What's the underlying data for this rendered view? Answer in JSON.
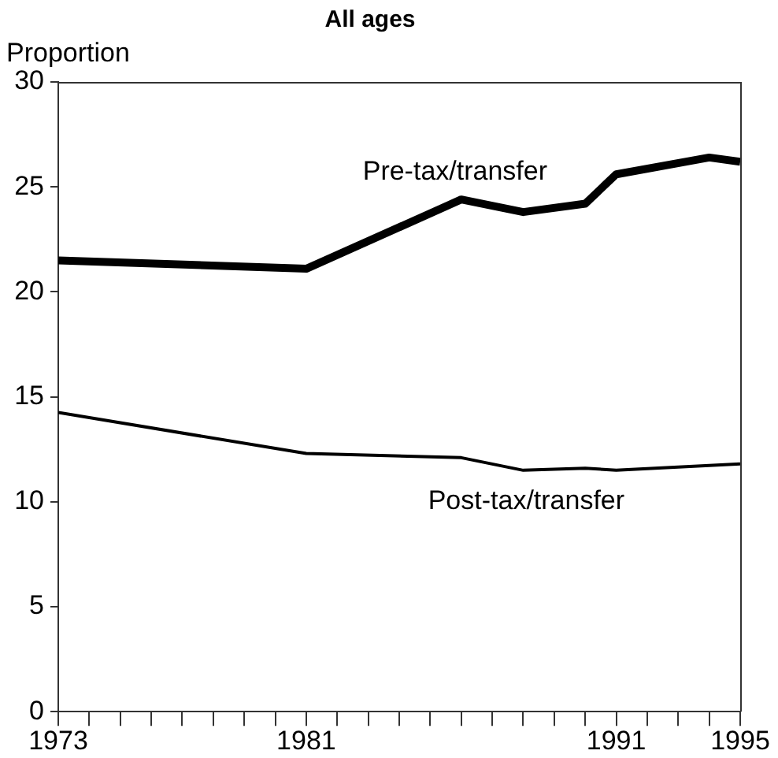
{
  "chart_data": {
    "type": "line",
    "title": "All ages",
    "ylabel": "Proportion",
    "xlim": [
      1973,
      1995
    ],
    "xticks": [
      1973,
      {
        "value": 1974,
        "label": null
      },
      {
        "value": 1975,
        "label": null
      },
      {
        "value": 1976,
        "label": null
      },
      {
        "value": 1977,
        "label": null
      },
      {
        "value": 1978,
        "label": null
      },
      {
        "value": 1979,
        "label": null
      },
      {
        "value": 1980,
        "label": null
      },
      1981,
      {
        "value": 1982,
        "label": null
      },
      {
        "value": 1983,
        "label": null
      },
      {
        "value": 1984,
        "label": null
      },
      {
        "value": 1985,
        "label": null
      },
      {
        "value": 1986,
        "label": null
      },
      {
        "value": 1987,
        "label": null
      },
      {
        "value": 1988,
        "label": null
      },
      {
        "value": 1989,
        "label": null
      },
      {
        "value": 1990,
        "label": null
      },
      1991,
      {
        "value": 1992,
        "label": null
      },
      {
        "value": 1993,
        "label": null
      },
      {
        "value": 1994,
        "label": null
      },
      1995
    ],
    "ylim": [
      0,
      30
    ],
    "yticks": [
      0,
      5,
      10,
      15,
      20,
      25,
      30
    ],
    "x": [
      1973,
      1981,
      1986,
      1988,
      1990,
      1991,
      1994,
      1995
    ],
    "series": [
      {
        "name": "Pre-tax/transfer",
        "color": "#000000",
        "values": [
          21.5,
          21.1,
          24.4,
          23.8,
          24.2,
          25.6,
          26.4,
          26.2
        ]
      },
      {
        "name": "Post-tax/transfer",
        "color": "#000000",
        "x": [
          1973,
          1981,
          1986,
          1988,
          1990,
          1991,
          1995
        ],
        "values": [
          14.25,
          12.3,
          12.1,
          11.5,
          11.6,
          11.5,
          11.8
        ]
      }
    ],
    "grid": false,
    "legend": false,
    "marker": "none",
    "line_style": "solid"
  }
}
